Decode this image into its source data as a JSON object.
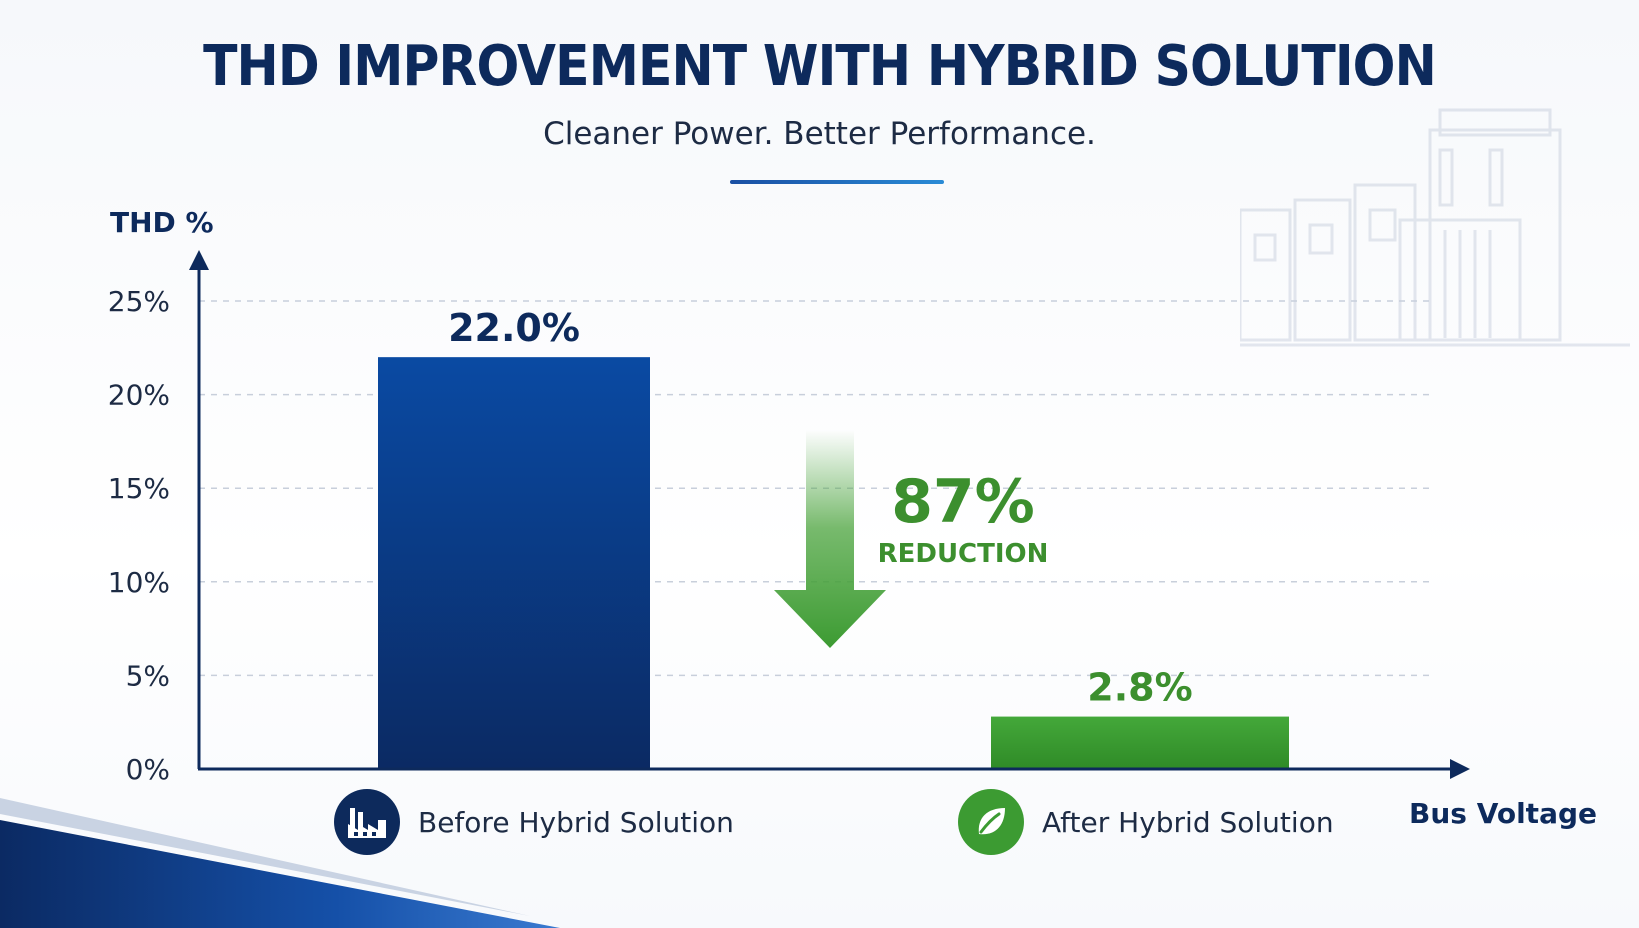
{
  "chart_data": {
    "type": "bar",
    "title": "THD IMPROVEMENT WITH HYBRID SOLUTION",
    "subtitle": "Cleaner Power. Better Performance.",
    "ylabel": "THD %",
    "xlabel": "Bus Voltage",
    "ylim": [
      0,
      25
    ],
    "yticks": [
      0,
      5,
      10,
      15,
      20,
      25
    ],
    "ytick_labels": [
      "0%",
      "5%",
      "10%",
      "15%",
      "20%",
      "25%"
    ],
    "grid": true,
    "categories": [
      "Before Hybrid Solution",
      "After Hybrid Solution"
    ],
    "values": [
      22.0,
      2.8
    ],
    "data_labels": [
      "22.0%",
      "2.8%"
    ],
    "annotation": {
      "value": "87%",
      "text": "REDUCTION"
    }
  },
  "colors": {
    "before_bar_top": "#0a4aa3",
    "before_bar_bottom": "#0b2a63",
    "after_bar": "#3c9b32",
    "navy": "#0d2a5c",
    "green": "#3c8f2e"
  },
  "icons": {
    "before": "factory-icon",
    "after": "leaf-icon"
  }
}
